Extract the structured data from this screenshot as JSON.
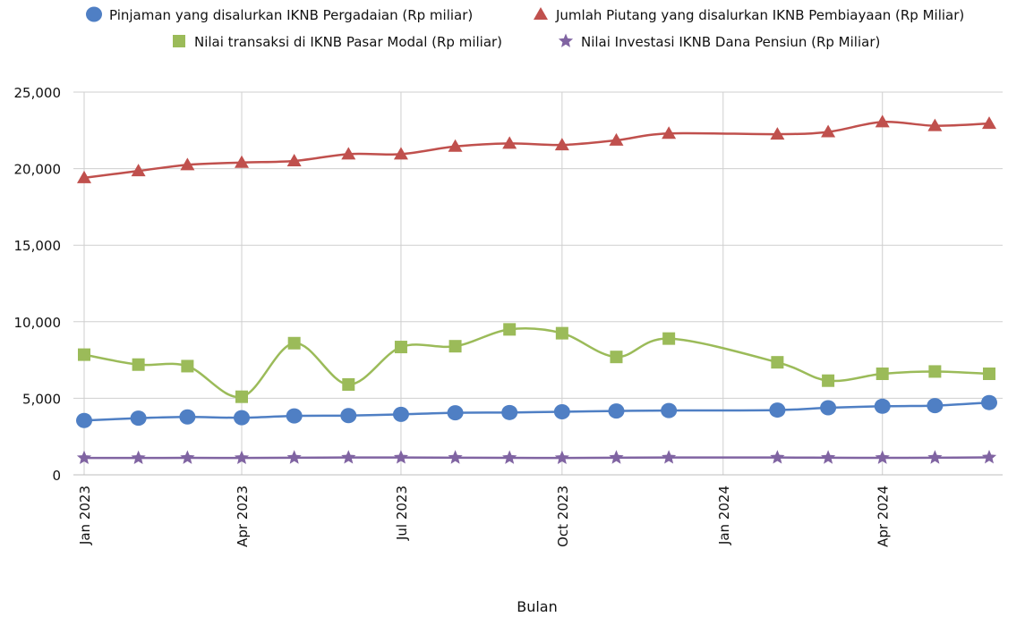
{
  "chart_data": {
    "type": "line",
    "title": "",
    "xlabel": "Bulan",
    "ylabel": "",
    "ylim": [
      0,
      25000
    ],
    "y_ticks": [
      0,
      5000,
      10000,
      15000,
      20000,
      25000
    ],
    "y_tick_labels": [
      "0",
      "5,000",
      "10,000",
      "15,000",
      "20,000",
      "25,000"
    ],
    "x_range": [
      "2023-01-01",
      "2024-06-01"
    ],
    "x_ticks": [
      "2023-01-01",
      "2023-04-01",
      "2023-07-01",
      "2023-10-01",
      "2024-01-01",
      "2024-04-01"
    ],
    "x_tick_labels": [
      "Jan 2023",
      "Apr 2023",
      "Jul 2023",
      "Oct 2023",
      "Jan 2024",
      "Apr 2024"
    ],
    "grid": true,
    "legend_position": "top",
    "series": [
      {
        "name": "Pinjaman yang disalurkan IKNB Pergadaian (Rp miliar)",
        "marker": "circle",
        "color": "#4f7fc4",
        "x": [
          "2023-01-01",
          "2023-02-01",
          "2023-03-01",
          "2023-04-01",
          "2023-05-01",
          "2023-06-01",
          "2023-07-01",
          "2023-08-01",
          "2023-09-01",
          "2023-10-01",
          "2023-11-01",
          "2023-12-01",
          "2024-02-01",
          "2024-03-01",
          "2024-04-01",
          "2024-05-01",
          "2024-06-01"
        ],
        "values": [
          3550,
          3700,
          3780,
          3730,
          3850,
          3870,
          3950,
          4050,
          4070,
          4120,
          4170,
          4200,
          4230,
          4380,
          4480,
          4520,
          4720
        ]
      },
      {
        "name": "Jumlah Piutang yang disalurkan IKNB Pembiayaan (Rp Miliar)",
        "marker": "triangle",
        "color": "#c0504d",
        "x": [
          "2023-01-01",
          "2023-02-01",
          "2023-03-01",
          "2023-04-01",
          "2023-05-01",
          "2023-06-01",
          "2023-07-01",
          "2023-08-01",
          "2023-09-01",
          "2023-10-01",
          "2023-11-01",
          "2023-12-01",
          "2024-02-01",
          "2024-03-01",
          "2024-04-01",
          "2024-05-01",
          "2024-06-01"
        ],
        "values": [
          19400,
          19850,
          20250,
          20400,
          20500,
          20950,
          20950,
          21450,
          21650,
          21550,
          21850,
          22300,
          22250,
          22400,
          23050,
          22800,
          22950
        ]
      },
      {
        "name": "Nilai transaksi di IKNB Pasar Modal (Rp miliar)",
        "marker": "square",
        "color": "#9bbb59",
        "x": [
          "2023-01-01",
          "2023-02-01",
          "2023-03-01",
          "2023-04-01",
          "2023-05-01",
          "2023-06-01",
          "2023-07-01",
          "2023-08-01",
          "2023-09-01",
          "2023-10-01",
          "2023-11-01",
          "2023-12-01",
          "2024-02-01",
          "2024-03-01",
          "2024-04-01",
          "2024-05-01",
          "2024-06-01"
        ],
        "values": [
          7850,
          7200,
          7100,
          5100,
          8600,
          5900,
          8350,
          8400,
          9500,
          9250,
          7700,
          8900,
          7350,
          6150,
          6600,
          6750,
          6600
        ]
      },
      {
        "name": "Nilai Investasi IKNB Dana Pensiun (Rp Miliar)",
        "marker": "star",
        "color": "#8064a2",
        "x": [
          "2023-01-01",
          "2023-02-01",
          "2023-03-01",
          "2023-04-01",
          "2023-05-01",
          "2023-06-01",
          "2023-07-01",
          "2023-08-01",
          "2023-09-01",
          "2023-10-01",
          "2023-11-01",
          "2023-12-01",
          "2024-02-01",
          "2024-03-01",
          "2024-04-01",
          "2024-05-01",
          "2024-06-01"
        ],
        "values": [
          1100,
          1100,
          1110,
          1100,
          1120,
          1130,
          1130,
          1120,
          1110,
          1100,
          1120,
          1130,
          1130,
          1120,
          1110,
          1120,
          1140
        ]
      }
    ]
  }
}
